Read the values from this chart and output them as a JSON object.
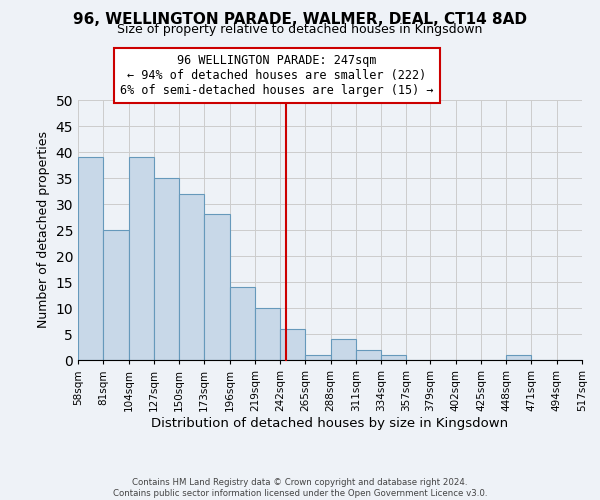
{
  "title": "96, WELLINGTON PARADE, WALMER, DEAL, CT14 8AD",
  "subtitle": "Size of property relative to detached houses in Kingsdown",
  "xlabel": "Distribution of detached houses by size in Kingsdown",
  "ylabel": "Number of detached properties",
  "bin_edges": [
    58,
    81,
    104,
    127,
    150,
    173,
    196,
    219,
    242,
    265,
    288,
    311,
    334,
    357,
    379,
    402,
    425,
    448,
    471,
    494,
    517
  ],
  "counts": [
    39,
    25,
    39,
    35,
    32,
    28,
    14,
    10,
    6,
    1,
    4,
    2,
    1,
    0,
    0,
    0,
    0,
    1,
    0,
    0
  ],
  "bar_facecolor": "#c8d8e8",
  "bar_edgecolor": "#6699bb",
  "vline_x": 247,
  "vline_color": "#cc0000",
  "annotation_box_edgecolor": "#cc0000",
  "annotation_lines": [
    "96 WELLINGTON PARADE: 247sqm",
    "← 94% of detached houses are smaller (222)",
    "6% of semi-detached houses are larger (15) →"
  ],
  "ylim": [
    0,
    50
  ],
  "yticks": [
    0,
    5,
    10,
    15,
    20,
    25,
    30,
    35,
    40,
    45,
    50
  ],
  "footer_lines": [
    "Contains HM Land Registry data © Crown copyright and database right 2024.",
    "Contains public sector information licensed under the Open Government Licence v3.0."
  ],
  "background_color": "#eef2f7",
  "grid_color": "#cccccc"
}
